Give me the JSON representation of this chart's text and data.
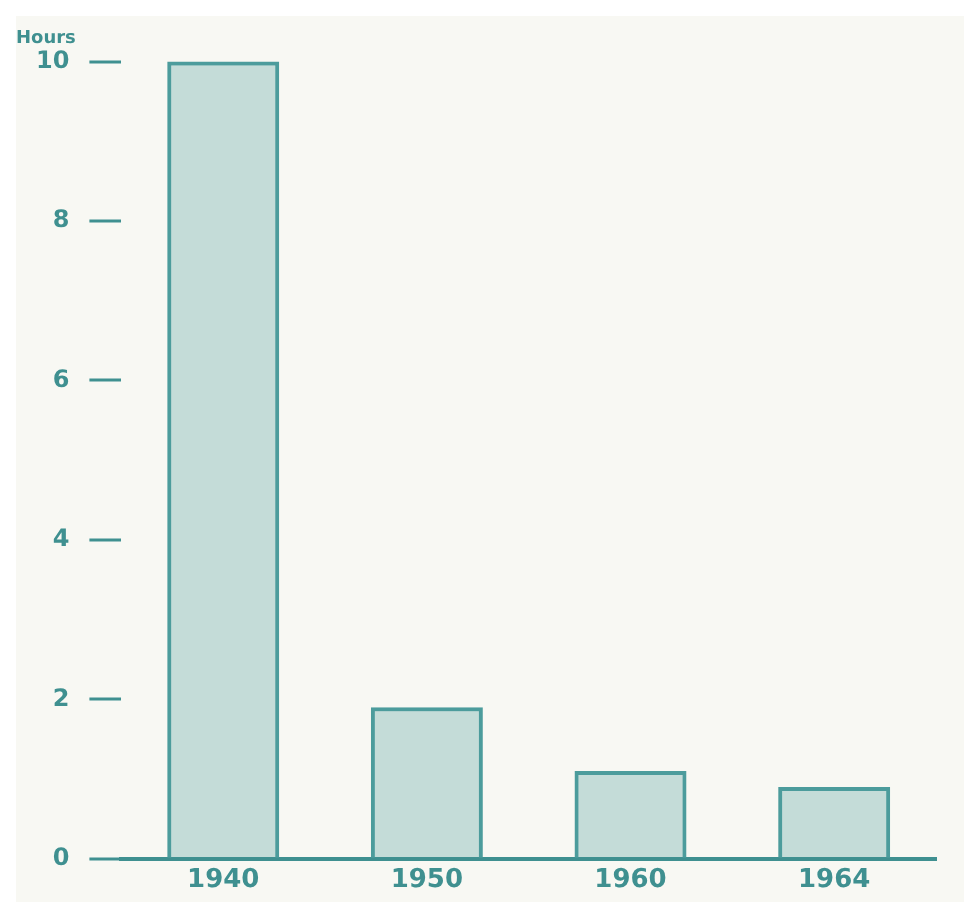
{
  "chart_data": {
    "type": "bar",
    "ylabel": "Hours",
    "categories": [
      "1940",
      "1950",
      "1960",
      "1964"
    ],
    "series": [
      {
        "color": "#4c9c9c",
        "values": [
          10,
          1.9,
          1.1,
          0.9
        ]
      }
    ],
    "ylim": [
      0,
      10
    ],
    "yticks": [
      0,
      2,
      4,
      6,
      8,
      10
    ],
    "grid": false,
    "legend": false
  }
}
